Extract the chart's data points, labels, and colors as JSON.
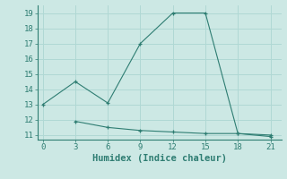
{
  "line1_x": [
    0,
    3,
    6,
    9,
    12,
    15,
    18,
    21
  ],
  "line1_y": [
    13,
    14.5,
    13.1,
    17,
    19,
    19,
    11.1,
    11.0
  ],
  "line2_x": [
    3,
    6,
    9,
    12,
    15,
    18,
    21
  ],
  "line2_y": [
    11.9,
    11.5,
    11.3,
    11.2,
    11.1,
    11.1,
    10.9
  ],
  "line_color": "#2e7d72",
  "bg_color": "#cce8e4",
  "grid_color": "#b0d8d4",
  "xlabel": "Humidex (Indice chaleur)",
  "xlim": [
    -0.5,
    22
  ],
  "ylim": [
    10.7,
    19.5
  ],
  "xticks": [
    0,
    3,
    6,
    9,
    12,
    15,
    18,
    21
  ],
  "yticks": [
    11,
    12,
    13,
    14,
    15,
    16,
    17,
    18,
    19
  ],
  "xlabel_fontsize": 7.5,
  "tick_fontsize": 6.5
}
